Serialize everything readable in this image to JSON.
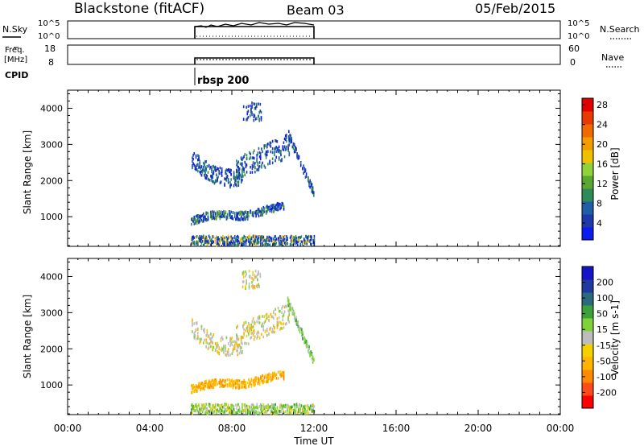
{
  "header": {
    "station": "Blackstone (fitACF)",
    "beam": "Beam 03",
    "date": "05/Feb/2015"
  },
  "top_panels": {
    "nsky_label": "N.Sky",
    "nsearch_label": "N.Search",
    "scale_hi": "10^5",
    "scale_lo": "10^0",
    "freq_label_1": "Freq.",
    "freq_label_2": "[MHz]",
    "freq_hi": "18",
    "freq_lo": "8",
    "nave_label": "Nave",
    "nave_hi": "60",
    "nave_lo": "0",
    "cpid_label": "CPID",
    "cpid_value": "rbsp 200"
  },
  "colors": {
    "power": [
      "#0a1cf0",
      "#1d3aa8",
      "#1e5fa8",
      "#2e8b57",
      "#5aa832",
      "#8fd23a",
      "#f0c000",
      "#f49b00",
      "#f06a00",
      "#e83a00",
      "#e00000"
    ],
    "velocity": [
      "#ff0000",
      "#ff4a1a",
      "#ff8a00",
      "#ffb400",
      "#f4d000",
      "#bdbdbd",
      "#7fd23c",
      "#3ca03c",
      "#2a6a7a",
      "#1e3aa0",
      "#1414c8"
    ]
  },
  "chart_data": [
    {
      "type": "heatmap",
      "name": "power",
      "ylabel": "Slant Range [km]",
      "colorbar_label": "Power [dB]",
      "colorbar_ticks": [
        "4",
        "8",
        "12",
        "16",
        "20",
        "24",
        "28"
      ],
      "x_ticks": [
        "00:00",
        "04:00",
        "08:00",
        "12:00",
        "16:00",
        "20:00",
        "00:00"
      ],
      "y_ticks": [
        "1000",
        "2000",
        "3000",
        "4000"
      ],
      "xlim_hours": [
        0,
        24
      ],
      "ylim_km": [
        180,
        4500
      ],
      "xlabel": "",
      "grid": false
    },
    {
      "type": "heatmap",
      "name": "velocity",
      "ylabel": "Slant Range [km]",
      "colorbar_label": "Velocity [m s-1]",
      "colorbar_ticks": [
        "-200",
        "-100",
        "-50",
        "-15",
        "15",
        "50",
        "100",
        "200"
      ],
      "x_ticks": [
        "00:00",
        "04:00",
        "08:00",
        "12:00",
        "16:00",
        "20:00",
        "00:00"
      ],
      "y_ticks": [
        "1000",
        "2000",
        "3000",
        "4000"
      ],
      "xlim_hours": [
        0,
        24
      ],
      "ylim_km": [
        180,
        4500
      ],
      "xlabel": "Time UT",
      "grid": false
    }
  ]
}
